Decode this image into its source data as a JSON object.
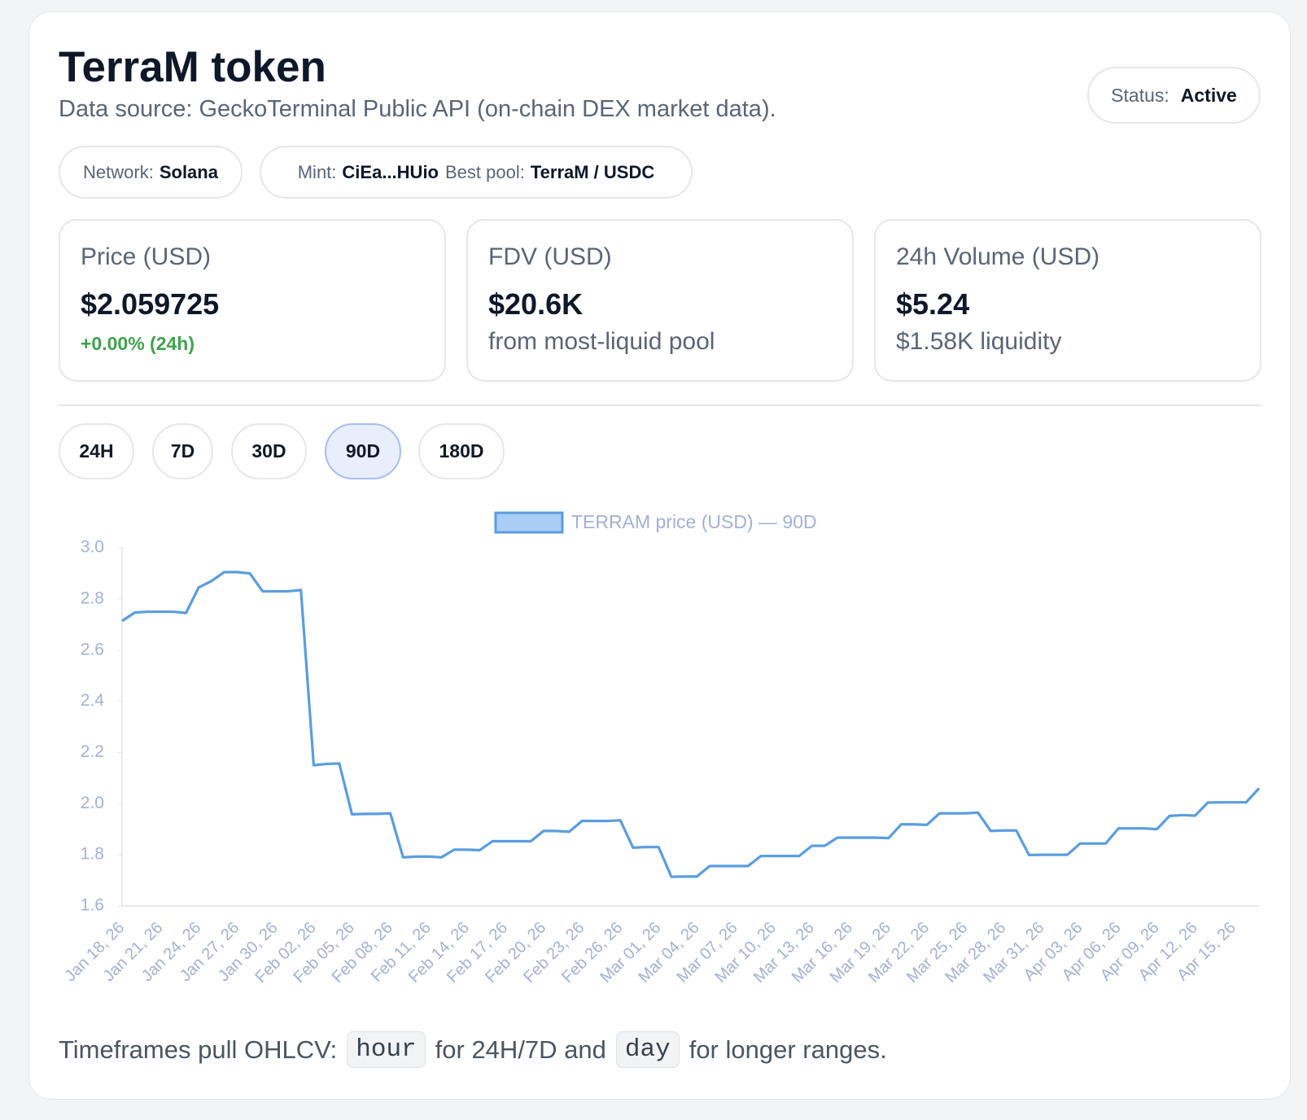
{
  "header": {
    "title": "TerraM token",
    "subtitle": "Data source: GeckoTerminal Public API (on-chain DEX market data).",
    "status_label": "Status:",
    "status_value": "Active"
  },
  "chips": [
    [
      {
        "label": "Network:",
        "value": "Solana"
      }
    ],
    [
      {
        "label": "Mint:",
        "value": "CiEa...HUio"
      },
      {
        "label": "Best pool:",
        "value": "TerraM / USDC"
      }
    ]
  ],
  "stats": [
    {
      "label": "Price (USD)",
      "value": "$2.059725",
      "note": "+0.00% (24h)"
    },
    {
      "label": "FDV (USD)",
      "value": "$20.6K",
      "note": "from most-liquid pool"
    },
    {
      "label": "24h Volume (USD)",
      "value": "$5.24",
      "note": "$1.58K liquidity"
    }
  ],
  "timeframes": {
    "options": [
      "24H",
      "7D",
      "30D",
      "90D",
      "180D"
    ],
    "selected": "90D"
  },
  "chart_data": {
    "type": "line",
    "grid": false,
    "categories": [
      "Jan 18, 26",
      null,
      null,
      "Jan 21, 26",
      null,
      null,
      "Jan 24, 26",
      null,
      null,
      "Jan 27, 26",
      null,
      null,
      "Jan 30, 26",
      null,
      null,
      "Feb 02, 26",
      null,
      null,
      "Feb 05, 26",
      null,
      null,
      "Feb 08, 26",
      null,
      null,
      "Feb 11, 26",
      null,
      null,
      "Feb 14, 26",
      null,
      null,
      "Feb 17, 26",
      null,
      null,
      "Feb 20, 26",
      null,
      null,
      "Feb 23, 26",
      null,
      null,
      "Feb 26, 26",
      null,
      null,
      "Mar 01, 26",
      null,
      null,
      "Mar 04, 26",
      null,
      null,
      "Mar 07, 26",
      null,
      null,
      "Mar 10, 26",
      null,
      null,
      "Mar 13, 26",
      null,
      null,
      "Mar 16, 26",
      null,
      null,
      "Mar 19, 26",
      null,
      null,
      "Mar 22, 26",
      null,
      null,
      "Mar 25, 26",
      null,
      null,
      "Mar 28, 26",
      null,
      null,
      "Mar 31, 26",
      null,
      null,
      "Apr 03, 26",
      null,
      null,
      "Apr 06, 26",
      null,
      null,
      "Apr 09, 26",
      null,
      null,
      "Apr 12, 26",
      null,
      null,
      "Apr 15, 26",
      null,
      null
    ],
    "series": [
      {
        "name": "TERRAM price (USD) — 90D",
        "color": "#5a9de0",
        "values": [
          2.714,
          2.747,
          2.75,
          2.75,
          2.75,
          2.745,
          2.845,
          2.87,
          2.905,
          2.905,
          2.9,
          2.83,
          2.83,
          2.83,
          2.835,
          2.15,
          2.155,
          2.157,
          1.958,
          1.96,
          1.96,
          1.962,
          1.79,
          1.793,
          1.793,
          1.79,
          1.82,
          1.82,
          1.818,
          1.853,
          1.853,
          1.853,
          1.853,
          1.893,
          1.893,
          1.89,
          1.932,
          1.932,
          1.932,
          1.935,
          1.828,
          1.83,
          1.83,
          1.714,
          1.715,
          1.715,
          1.756,
          1.756,
          1.756,
          1.756,
          1.795,
          1.795,
          1.795,
          1.795,
          1.835,
          1.835,
          1.867,
          1.867,
          1.867,
          1.867,
          1.865,
          1.919,
          1.919,
          1.917,
          1.962,
          1.962,
          1.962,
          1.965,
          1.893,
          1.895,
          1.895,
          1.799,
          1.8,
          1.8,
          1.8,
          1.844,
          1.844,
          1.844,
          1.903,
          1.903,
          1.903,
          1.9,
          1.952,
          1.955,
          1.953,
          2.004,
          2.005,
          2.005,
          2.005,
          2.06
        ]
      }
    ],
    "ylim": [
      1.6,
      3.0
    ],
    "yticks": [
      {
        "value": 3,
        "label": "3.0"
      },
      2.8,
      2.6,
      2.4,
      2.2,
      {
        "value": 2,
        "label": "2.0"
      },
      1.8,
      1.6
    ]
  },
  "footer": {
    "parts": [
      {
        "text": "Timeframes pull OHLCV:",
        "code": false
      },
      {
        "text": "hour",
        "code": true
      },
      {
        "text": "for 24H/7D and",
        "code": false
      },
      {
        "text": "day",
        "code": true
      },
      {
        "text": "for longer ranges.",
        "code": false
      }
    ]
  }
}
